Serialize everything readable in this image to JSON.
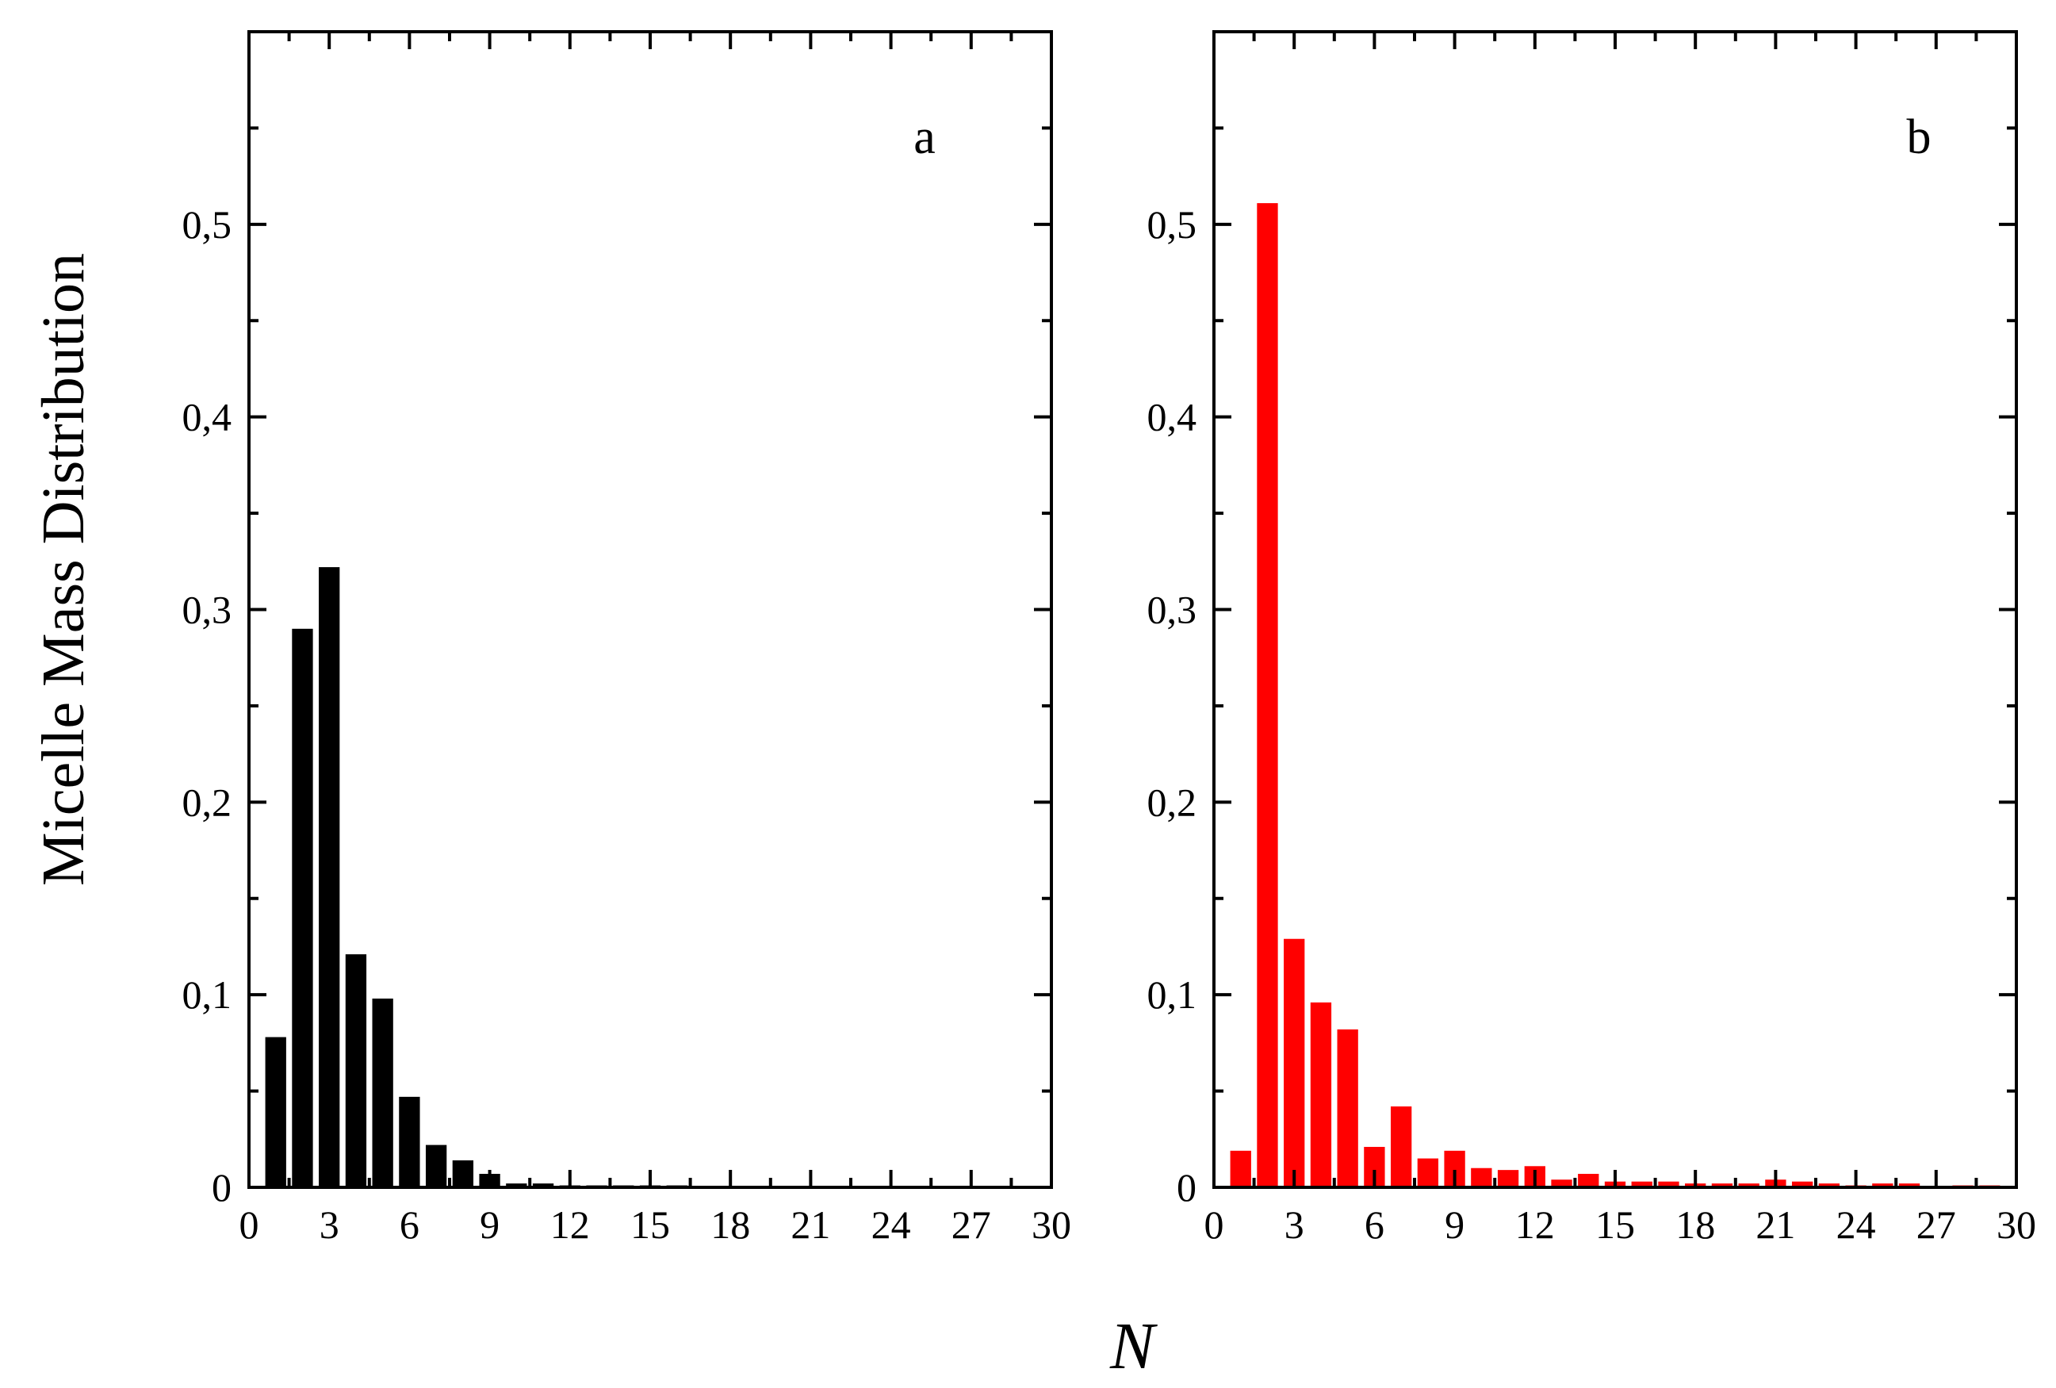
{
  "figure": {
    "ylabel": "Micelle Mass Distribution",
    "xlabel": "N"
  },
  "chart_data": [
    {
      "type": "bar",
      "panel_label": "a",
      "bar_color": "#000000",
      "x": [
        1,
        2,
        3,
        4,
        5,
        6,
        7,
        8,
        9,
        10,
        11,
        12,
        13,
        14,
        15,
        16
      ],
      "values": [
        0.078,
        0.29,
        0.322,
        0.121,
        0.098,
        0.047,
        0.022,
        0.014,
        0.007,
        0.002,
        0.002,
        0.001,
        0.001,
        0.001,
        0.001,
        0.001
      ],
      "xlim": [
        0,
        30
      ],
      "ylim": [
        0,
        0.6
      ],
      "xticks": [
        "0",
        "3",
        "6",
        "9",
        "12",
        "15",
        "18",
        "21",
        "24",
        "27",
        "30"
      ],
      "yticks": [
        "0",
        "0,1",
        "0,2",
        "0,3",
        "0,4",
        "0,5"
      ],
      "grid": false
    },
    {
      "type": "bar",
      "panel_label": "b",
      "bar_color": "#ff0000",
      "x": [
        1,
        2,
        3,
        4,
        5,
        6,
        7,
        8,
        9,
        10,
        11,
        12,
        13,
        14,
        15,
        16,
        17,
        18,
        19,
        20,
        21,
        22,
        23,
        24,
        25,
        26,
        27,
        28,
        29
      ],
      "values": [
        0.019,
        0.511,
        0.129,
        0.096,
        0.082,
        0.021,
        0.042,
        0.015,
        0.019,
        0.01,
        0.009,
        0.011,
        0.004,
        0.007,
        0.003,
        0.003,
        0.003,
        0.002,
        0.002,
        0.002,
        0.004,
        0.003,
        0.002,
        0.001,
        0.002,
        0.002,
        0.0,
        0.001,
        0.001
      ],
      "xlim": [
        0,
        30
      ],
      "ylim": [
        0,
        0.6
      ],
      "xticks": [
        "0",
        "3",
        "6",
        "9",
        "12",
        "15",
        "18",
        "21",
        "24",
        "27",
        "30"
      ],
      "yticks": [
        "0",
        "0,1",
        "0,2",
        "0,3",
        "0,4",
        "0,5"
      ],
      "grid": false
    }
  ]
}
